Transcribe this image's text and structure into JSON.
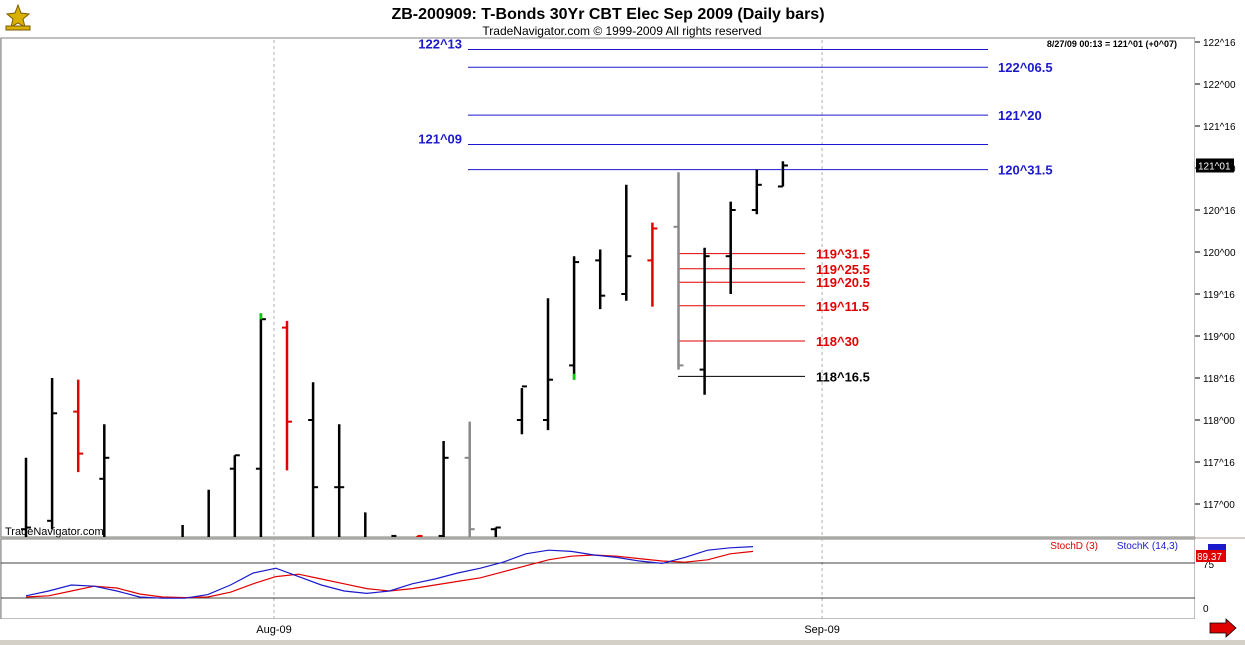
{
  "header": {
    "title": "ZB-200909:  T-Bonds 30Yr CBT Elec Sep 2009  (Daily bars)",
    "copyright": "TradeNavigator.com © 1999-2009 All rights reserved",
    "last_quote": "8/27/09 00:13 = 121^01 (+0^07)",
    "watermark": "TradeNavigator.com"
  },
  "colors": {
    "background": "#ffffff",
    "frame": "#d4d0c8",
    "bar_default": "#000000",
    "bar_down": "#e00000",
    "bar_up_close": "#00cc00",
    "bar_gray": "#888888",
    "blue_level": "#1a1acc",
    "red_level": "#e00000",
    "stoch_d": "#e00000",
    "stoch_k": "#1a1acc"
  },
  "chart_data": [
    {
      "type": "ohlc",
      "panel": "price",
      "title": "ZB-200909:  T-Bonds 30Yr CBT Elec Sep 2009  (Daily bars)",
      "y_axis_ticks": [
        "122^16",
        "122^00",
        "121^16",
        "121^00",
        "120^16",
        "120^00",
        "119^16",
        "119^00",
        "118^16",
        "118^00",
        "117^16",
        "117^00"
      ],
      "y_axis_ticks_values": [
        122.5,
        122.0,
        121.5,
        121.0,
        120.5,
        120.0,
        119.5,
        119.0,
        118.5,
        118.0,
        117.5,
        117.0
      ],
      "ylim": [
        116.6,
        122.5
      ],
      "last_price_label": "121^01",
      "last_price_value": 121.03,
      "x_axis_labels": [
        "Aug-09",
        "Sep-09"
      ],
      "x_axis_label_bar_index": [
        10,
        31
      ],
      "bars": [
        {
          "o": 116.7,
          "h": 117.55,
          "l": 116.6,
          "c": 116.72,
          "color": "black"
        },
        {
          "o": 116.8,
          "h": 118.5,
          "l": 116.7,
          "c": 118.08,
          "color": "black"
        },
        {
          "o": 118.1,
          "h": 118.48,
          "l": 117.38,
          "c": 117.6,
          "color": "red"
        },
        {
          "o": 117.3,
          "h": 117.95,
          "l": 116.6,
          "c": 117.55,
          "color": "black"
        },
        {
          "o": null,
          "h": null,
          "l": null,
          "c": null,
          "color": "none"
        },
        {
          "o": null,
          "h": null,
          "l": null,
          "c": null,
          "color": "none"
        },
        {
          "o": null,
          "h": 116.75,
          "l": 116.6,
          "c": null,
          "color": "black"
        },
        {
          "o": null,
          "h": 117.17,
          "l": 116.6,
          "c": null,
          "color": "black"
        },
        {
          "o": 117.42,
          "h": 117.58,
          "l": 116.6,
          "c": 117.58,
          "color": "black"
        },
        {
          "o": 117.42,
          "h": 119.27,
          "l": 116.6,
          "c": 119.2,
          "color": "black"
        },
        {
          "o": 119.1,
          "h": 119.18,
          "l": 117.4,
          "c": 117.98,
          "color": "red"
        },
        {
          "o": 118.0,
          "h": 118.45,
          "l": 116.6,
          "c": 117.2,
          "color": "black"
        },
        {
          "o": 117.2,
          "h": 117.95,
          "l": 116.6,
          "c": 117.2,
          "color": "black"
        },
        {
          "o": null,
          "h": 116.9,
          "l": 116.6,
          "c": null,
          "color": "black"
        },
        {
          "o": null,
          "h": 116.6,
          "l": 116.6,
          "c": 116.62,
          "color": "black"
        },
        {
          "o": null,
          "h": 116.62,
          "l": 116.6,
          "c": 116.62,
          "color": "red"
        },
        {
          "o": 116.62,
          "h": 117.75,
          "l": 116.6,
          "c": 117.55,
          "color": "black"
        },
        {
          "o": 117.55,
          "h": 117.98,
          "l": 116.6,
          "c": 116.7,
          "color": "gray"
        },
        {
          "o": 116.7,
          "h": 116.72,
          "l": 116.6,
          "c": 116.72,
          "color": "black"
        },
        {
          "o": 118.0,
          "h": 118.38,
          "l": 117.83,
          "c": 118.4,
          "color": "black"
        },
        {
          "o": 118.0,
          "h": 119.45,
          "l": 117.88,
          "c": 118.48,
          "color": "black"
        },
        {
          "o": 118.65,
          "h": 119.95,
          "l": 118.48,
          "c": 119.88,
          "color": "black"
        },
        {
          "o": 119.9,
          "h": 120.03,
          "l": 119.32,
          "c": 119.48,
          "color": "black"
        },
        {
          "o": 119.5,
          "h": 120.8,
          "l": 119.42,
          "c": 119.95,
          "color": "black"
        },
        {
          "o": 119.9,
          "h": 120.35,
          "l": 119.35,
          "c": 120.28,
          "color": "red"
        },
        {
          "o": 120.3,
          "h": 120.95,
          "l": 118.6,
          "c": 118.65,
          "color": "gray"
        },
        {
          "o": 118.6,
          "h": 120.05,
          "l": 118.3,
          "c": 119.95,
          "color": "black"
        },
        {
          "o": 119.95,
          "h": 120.6,
          "l": 119.5,
          "c": 120.5,
          "color": "black"
        },
        {
          "o": 120.5,
          "h": 120.98,
          "l": 120.45,
          "c": 120.8,
          "color": "black"
        },
        {
          "o": 120.78,
          "h": 121.08,
          "l": 120.78,
          "c": 121.03,
          "color": "black"
        }
      ],
      "level_lines": [
        {
          "label": "122^13",
          "value": 122.41,
          "color": "blue",
          "label_side": "left"
        },
        {
          "label": "122^06.5",
          "value": 122.2,
          "color": "blue",
          "label_side": "right"
        },
        {
          "label": "121^20",
          "value": 121.63,
          "color": "blue",
          "label_side": "right"
        },
        {
          "label": "121^09",
          "value": 121.28,
          "color": "blue",
          "label_side": "left"
        },
        {
          "label": "120^31.5",
          "value": 120.98,
          "color": "blue",
          "label_side": "right"
        },
        {
          "label": "119^31.5",
          "value": 119.98,
          "color": "red",
          "label_side": "right"
        },
        {
          "label": "119^25.5",
          "value": 119.8,
          "color": "red",
          "label_side": "right"
        },
        {
          "label": "119^20.5",
          "value": 119.64,
          "color": "red",
          "label_side": "right"
        },
        {
          "label": "119^11.5",
          "value": 119.36,
          "color": "red",
          "label_side": "right"
        },
        {
          "label": "118^30",
          "value": 118.94,
          "color": "red",
          "label_side": "right"
        },
        {
          "label": "118^16.5",
          "value": 118.52,
          "color": "black",
          "label_side": "right"
        }
      ]
    },
    {
      "type": "line",
      "panel": "stochastic",
      "series": [
        {
          "name": "StochD (3)",
          "color": "red",
          "values": [
            10,
            12,
            20,
            28,
            25,
            15,
            10,
            9,
            10,
            18,
            32,
            44,
            48,
            40,
            32,
            24,
            20,
            24,
            30,
            36,
            42,
            52,
            62,
            72,
            78,
            80,
            78,
            74,
            70,
            68,
            72,
            82,
            86
          ]
        },
        {
          "name": "StochK (14,3)",
          "color": "blue",
          "values": [
            12,
            20,
            30,
            28,
            20,
            10,
            8,
            8,
            14,
            30,
            50,
            58,
            44,
            30,
            20,
            16,
            20,
            32,
            40,
            50,
            58,
            68,
            82,
            88,
            86,
            80,
            76,
            70,
            66,
            76,
            88,
            92,
            94
          ]
        }
      ],
      "y_axis_ticks": [
        "75",
        "0"
      ],
      "value_label": "89.37",
      "ylim": [
        -10,
        110
      ]
    }
  ]
}
